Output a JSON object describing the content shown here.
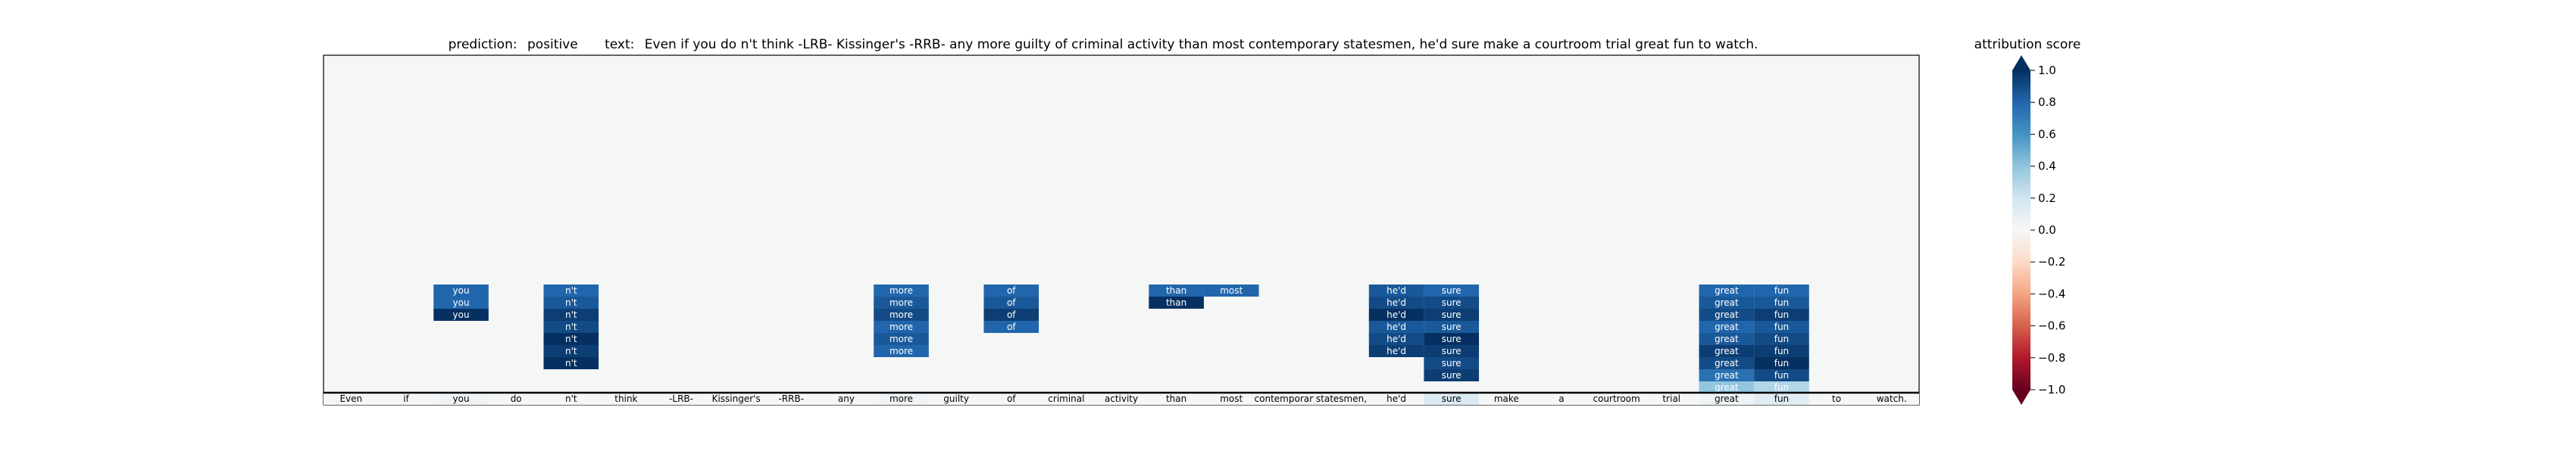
{
  "chart_data": {
    "type": "heatmap",
    "title_prediction_label": "prediction:",
    "title_prediction_value": "positive",
    "title_text_label": "text:",
    "title_text_value": "Even if you do n't think -LRB- Kissinger's -RRB- any more guilty of criminal activity than most contemporary statesmen, he'd sure make a courtroom trial great fun to watch.",
    "tokens": [
      "Even",
      "if",
      "you",
      "do",
      "n't",
      "think",
      "-LRB-",
      "Kissinger's",
      "-RRB-",
      "any",
      "more",
      "guilty",
      "of",
      "criminal",
      "activity",
      "than",
      "most",
      "contemporary",
      "statesmen,",
      "he'd",
      "sure",
      "make",
      "a",
      "courtroom",
      "trial",
      "great",
      "fun",
      "to",
      "watch."
    ],
    "base_row_values": [
      0.0,
      0.0,
      0.03,
      0.0,
      0.01,
      0.0,
      0.0,
      0.0,
      0.0,
      0.0,
      0.03,
      0.0,
      0.01,
      0.0,
      0.0,
      0.0,
      0.0,
      0.0,
      0.01,
      0.0,
      0.15,
      0.0,
      0.0,
      0.0,
      0.0,
      0.05,
      0.12,
      0.0,
      0.0
    ],
    "stacks": [
      {
        "token": "you",
        "values": [
          0.8,
          0.8,
          1.0
        ]
      },
      {
        "token": "n't",
        "values": [
          0.8,
          0.85,
          0.95,
          0.9,
          1.0,
          0.95,
          1.0
        ]
      },
      {
        "token": "more",
        "values": [
          0.8,
          0.85,
          0.9,
          0.8,
          0.85,
          0.8
        ]
      },
      {
        "token": "of",
        "values": [
          0.8,
          0.85,
          0.95,
          0.8
        ]
      },
      {
        "token": "than",
        "values": [
          0.8,
          1.0
        ]
      },
      {
        "token": "most",
        "values": [
          0.8
        ]
      },
      {
        "token": "he'd",
        "values": [
          0.85,
          0.9,
          1.0,
          0.85,
          0.9,
          0.95
        ]
      },
      {
        "token": "sure",
        "values": [
          0.8,
          0.9,
          0.95,
          0.85,
          1.0,
          0.95,
          0.9,
          0.95
        ]
      },
      {
        "token": "great",
        "values": [
          0.8,
          0.85,
          0.9,
          0.8,
          0.85,
          0.95,
          0.9,
          0.75,
          0.4
        ]
      },
      {
        "token": "fun",
        "values": [
          0.8,
          0.85,
          0.95,
          0.85,
          0.9,
          0.95,
          1.0,
          0.9,
          0.3
        ]
      }
    ],
    "colorbar": {
      "label": "attribution score",
      "range": [
        -1.0,
        1.0
      ],
      "ticks": [
        "1.0",
        "0.8",
        "0.6",
        "0.4",
        "0.2",
        "0.0",
        "−0.2",
        "−0.4",
        "−0.6",
        "−0.8",
        "−1.0"
      ],
      "colormap": "RdBu",
      "extend": "both"
    },
    "background_color": "#f5f6f6",
    "grid": false
  }
}
